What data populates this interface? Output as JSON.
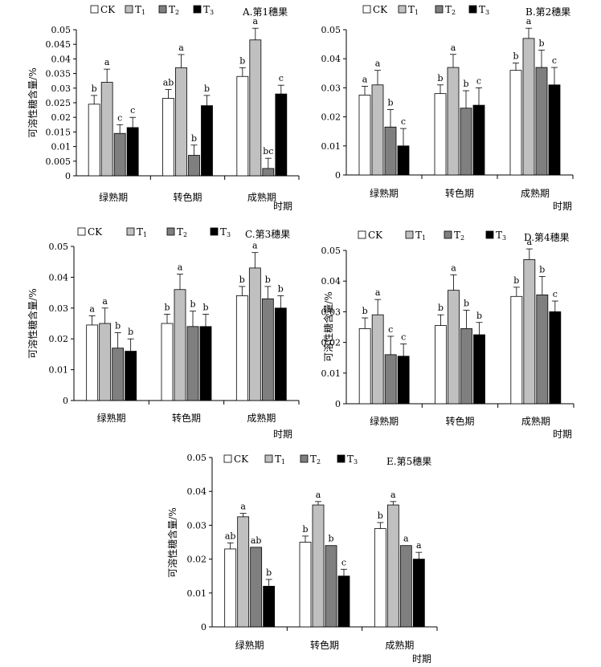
{
  "colors": {
    "CK": "#ffffff",
    "T1": "#c0c0c0",
    "T2": "#7f7f7f",
    "T3": "#000000"
  },
  "chart_data": [
    {
      "type": "bar",
      "title": "A.第1穗果",
      "categories": [
        "绿熟期",
        "转色期",
        "成熟期"
      ],
      "xlabel": "时期",
      "ylabel": "可溶性糖含量/%",
      "ylim": [
        0,
        0.05
      ],
      "yticks": [
        0,
        0.005,
        0.01,
        0.015,
        0.02,
        0.025,
        0.03,
        0.035,
        0.04,
        0.045,
        0.05
      ],
      "ytick_labels": [
        "0",
        "0.005",
        "0.01",
        "0.015",
        "0.02",
        "0.025",
        "0.03",
        "0.035",
        "0.04",
        "0.045",
        "0.05"
      ],
      "series": [
        {
          "name": "CK",
          "key": "CK",
          "values": [
            0.0245,
            0.0265,
            0.034
          ],
          "errors": [
            0.003,
            0.003,
            0.003
          ],
          "letters": [
            "b",
            "ab",
            "b"
          ]
        },
        {
          "name": "T1",
          "key": "T1",
          "values": [
            0.032,
            0.037,
            0.0465
          ],
          "errors": [
            0.0045,
            0.0045,
            0.004
          ],
          "letters": [
            "a",
            "a",
            "a"
          ]
        },
        {
          "name": "T2",
          "key": "T2",
          "values": [
            0.0145,
            0.007,
            0.0025
          ],
          "errors": [
            0.003,
            0.0035,
            0.0035
          ],
          "letters": [
            "c",
            "b",
            "bc"
          ]
        },
        {
          "name": "T3",
          "key": "T3",
          "values": [
            0.0165,
            0.024,
            0.028
          ],
          "errors": [
            0.0035,
            0.0035,
            0.003
          ],
          "letters": [
            "c",
            "b",
            "c"
          ]
        }
      ]
    },
    {
      "type": "bar",
      "title": "B.第2穗果",
      "categories": [
        "绿熟期",
        "转色期",
        "成熟期"
      ],
      "xlabel": "时期",
      "ylabel": "",
      "ylim": [
        0,
        0.05
      ],
      "yticks": [
        0,
        0.01,
        0.02,
        0.03,
        0.04,
        0.05
      ],
      "ytick_labels": [
        "0",
        "0.01",
        "0.02",
        "0.03",
        "0.04",
        "0.05"
      ],
      "series": [
        {
          "name": "CK",
          "key": "CK",
          "values": [
            0.0275,
            0.028,
            0.036
          ],
          "errors": [
            0.003,
            0.003,
            0.0025
          ],
          "letters": [
            "a",
            "b",
            "b"
          ]
        },
        {
          "name": "T1",
          "key": "T1",
          "values": [
            0.031,
            0.037,
            0.047
          ],
          "errors": [
            0.005,
            0.0045,
            0.0035
          ],
          "letters": [
            "a",
            "a",
            "a"
          ]
        },
        {
          "name": "T2",
          "key": "T2",
          "values": [
            0.0165,
            0.023,
            0.037
          ],
          "errors": [
            0.006,
            0.006,
            0.006
          ],
          "letters": [
            "b",
            "b",
            "b"
          ]
        },
        {
          "name": "T3",
          "key": "T3",
          "values": [
            0.01,
            0.024,
            0.031
          ],
          "errors": [
            0.006,
            0.006,
            0.006
          ],
          "letters": [
            "c",
            "c",
            "c"
          ]
        }
      ]
    },
    {
      "type": "bar",
      "title": "C.第3穗果",
      "categories": [
        "绿熟期",
        "转色期",
        "成熟期"
      ],
      "xlabel": "时期",
      "ylabel": "可溶性糖含量/%",
      "ylim": [
        0,
        0.05
      ],
      "yticks": [
        0,
        0.01,
        0.02,
        0.03,
        0.04,
        0.05
      ],
      "ytick_labels": [
        "0",
        "0.01",
        "0.02",
        "0.03",
        "0.04",
        "0.05"
      ],
      "series": [
        {
          "name": "CK",
          "key": "CK",
          "values": [
            0.0245,
            0.025,
            0.034
          ],
          "errors": [
            0.003,
            0.003,
            0.003
          ],
          "letters": [
            "a",
            "b",
            "b"
          ]
        },
        {
          "name": "T1",
          "key": "T1",
          "values": [
            0.025,
            0.036,
            0.043
          ],
          "errors": [
            0.005,
            0.005,
            0.005
          ],
          "letters": [
            "a",
            "a",
            "a"
          ]
        },
        {
          "name": "T2",
          "key": "T2",
          "values": [
            0.017,
            0.024,
            0.033
          ],
          "errors": [
            0.005,
            0.005,
            0.004
          ],
          "letters": [
            "b",
            "b",
            "b"
          ]
        },
        {
          "name": "T3",
          "key": "T3",
          "values": [
            0.016,
            0.024,
            0.03
          ],
          "errors": [
            0.004,
            0.004,
            0.004
          ],
          "letters": [
            "b",
            "b",
            "b"
          ]
        }
      ]
    },
    {
      "type": "bar",
      "title": "D.第4穗果",
      "categories": [
        "绿熟期",
        "转色期",
        "成熟期"
      ],
      "xlabel": "时期",
      "ylabel": "可溶性糖含量/%",
      "ylim": [
        0,
        0.05
      ],
      "yticks": [
        0,
        0.01,
        0.02,
        0.03,
        0.04,
        0.05
      ],
      "ytick_labels": [
        "0",
        "0.01",
        "0.02",
        "0.03",
        "0.04",
        "0.05"
      ],
      "series": [
        {
          "name": "CK",
          "key": "CK",
          "values": [
            0.0245,
            0.0255,
            0.035
          ],
          "errors": [
            0.0035,
            0.0035,
            0.003
          ],
          "letters": [
            "b",
            "b",
            "b"
          ]
        },
        {
          "name": "T1",
          "key": "T1",
          "values": [
            0.029,
            0.037,
            0.047
          ],
          "errors": [
            0.005,
            0.005,
            0.0035
          ],
          "letters": [
            "a",
            "a",
            "a"
          ]
        },
        {
          "name": "T2",
          "key": "T2",
          "values": [
            0.016,
            0.0245,
            0.0355
          ],
          "errors": [
            0.006,
            0.006,
            0.006
          ],
          "letters": [
            "c",
            "b",
            "b"
          ]
        },
        {
          "name": "T3",
          "key": "T3",
          "values": [
            0.0155,
            0.0225,
            0.03
          ],
          "errors": [
            0.004,
            0.004,
            0.0035
          ],
          "letters": [
            "c",
            "b",
            "c"
          ]
        }
      ]
    },
    {
      "type": "bar",
      "title": "E.第5穗果",
      "categories": [
        "绿熟期",
        "转色期",
        "成熟期"
      ],
      "xlabel": "时期",
      "ylabel": "可溶性糖含量/%",
      "ylim": [
        0,
        0.05
      ],
      "yticks": [
        0,
        0.01,
        0.02,
        0.03,
        0.04,
        0.05
      ],
      "ytick_labels": [
        "0",
        "0.01",
        "0.02",
        "0.03",
        "0.04",
        "0.05"
      ],
      "series": [
        {
          "name": "CK",
          "key": "CK",
          "values": [
            0.023,
            0.025,
            0.029
          ],
          "errors": [
            0.0018,
            0.0018,
            0.0018
          ],
          "letters": [
            "ab",
            "b",
            "b"
          ]
        },
        {
          "name": "T1",
          "key": "T1",
          "values": [
            0.0325,
            0.036,
            0.036
          ],
          "errors": [
            0.001,
            0.001,
            0.001
          ],
          "letters": [
            "a",
            "a",
            "a"
          ]
        },
        {
          "name": "T2",
          "key": "T2",
          "values": [
            0.0235,
            0.024,
            0.024
          ],
          "errors": [
            0,
            0,
            0
          ],
          "letters": [
            "ab",
            "b",
            "a"
          ]
        },
        {
          "name": "T3",
          "key": "T3",
          "values": [
            0.012,
            0.015,
            0.02
          ],
          "errors": [
            0.002,
            0.002,
            0.002
          ],
          "letters": [
            "b",
            "c",
            "a"
          ]
        }
      ]
    }
  ]
}
